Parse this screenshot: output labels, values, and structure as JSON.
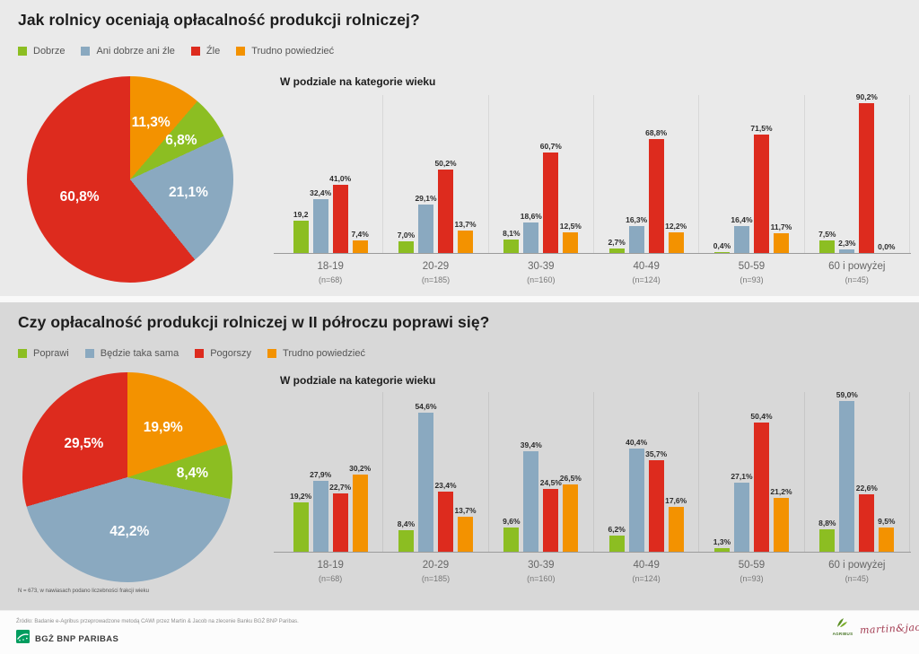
{
  "colors": {
    "green": "#8cbe22",
    "blue": "#8aa9c0",
    "red": "#dd2b1e",
    "orange": "#f39200"
  },
  "sections": [
    {
      "title": "Jak rolnicy oceniają opłacalność produkcji rolniczej?",
      "legend": [
        {
          "label": "Dobrze",
          "color": "green"
        },
        {
          "label": "Ani dobrze ani źle",
          "color": "blue"
        },
        {
          "label": "Źle",
          "color": "red"
        },
        {
          "label": "Trudno powiedzieć",
          "color": "orange"
        }
      ],
      "pie_chart": 0,
      "bar_chart": 1
    },
    {
      "title": "Czy opłacalność produkcji rolniczej w II półroczu poprawi się?",
      "legend": [
        {
          "label": "Poprawi",
          "color": "green"
        },
        {
          "label": "Będzie taka sama",
          "color": "blue"
        },
        {
          "label": "Pogorszy",
          "color": "red"
        },
        {
          "label": "Trudno powiedzieć",
          "color": "orange"
        }
      ],
      "pie_chart": 2,
      "bar_chart": 3
    }
  ],
  "chart_data": [
    {
      "type": "pie",
      "title": "Jak rolnicy oceniają opłacalność produkcji rolniczej?",
      "order": "clockwise from 12 o'clock",
      "slices": [
        {
          "name": "Trudno powiedzieć",
          "value": 11.3,
          "label": "11,3%",
          "color": "orange"
        },
        {
          "name": "Dobrze",
          "value": 6.8,
          "label": "6,8%",
          "color": "green"
        },
        {
          "name": "Ani dobrze ani źle",
          "value": 21.1,
          "label": "21,1%",
          "color": "blue"
        },
        {
          "name": "Źle",
          "value": 60.8,
          "label": "60,8%",
          "color": "red"
        }
      ]
    },
    {
      "type": "bar",
      "title": "W podziale na kategorie wieku",
      "categories": [
        "18-19",
        "20-29",
        "30-39",
        "40-49",
        "50-59",
        "60 i powyżej"
      ],
      "counts": [
        "(n=68)",
        "(n=185)",
        "(n=160)",
        "(n=124)",
        "(n=93)",
        "(n=45)"
      ],
      "ylim": [
        0,
        100
      ],
      "series": [
        {
          "name": "Dobrze",
          "color": "green",
          "values": [
            19.2,
            7.0,
            8.1,
            2.7,
            0.4,
            7.5
          ],
          "labels": [
            "19,2",
            "7,0%",
            "8,1%",
            "2,7%",
            "0,4%",
            "7,5%"
          ]
        },
        {
          "name": "Ani dobrze ani źle",
          "color": "blue",
          "values": [
            32.4,
            29.1,
            18.6,
            16.3,
            16.4,
            2.3
          ],
          "labels": [
            "32,4%",
            "29,1%",
            "18,6%",
            "16,3%",
            "16,4%",
            "2,3%"
          ]
        },
        {
          "name": "Źle",
          "color": "red",
          "values": [
            41.0,
            50.2,
            60.7,
            68.8,
            71.5,
            90.2
          ],
          "labels": [
            "41,0%",
            "50,2%",
            "60,7%",
            "68,8%",
            "71,5%",
            "90,2%"
          ]
        },
        {
          "name": "Trudno powiedzieć",
          "color": "orange",
          "values": [
            7.4,
            13.7,
            12.5,
            12.2,
            11.7,
            0.0
          ],
          "labels": [
            "7,4%",
            "13,7%",
            "12,5%",
            "12,2%",
            "11,7%",
            "0,0%"
          ]
        }
      ]
    },
    {
      "type": "pie",
      "title": "Czy opłacalność produkcji rolniczej w II półroczu poprawi się?",
      "order": "clockwise from 12 o'clock",
      "slices": [
        {
          "name": "Trudno powiedzieć",
          "value": 19.9,
          "label": "19,9%",
          "color": "orange"
        },
        {
          "name": "Poprawi",
          "value": 8.4,
          "label": "8,4%",
          "color": "green"
        },
        {
          "name": "Będzie taka sama",
          "value": 42.2,
          "label": "42,2%",
          "color": "blue"
        },
        {
          "name": "Pogorszy",
          "value": 29.5,
          "label": "29,5%",
          "color": "red"
        }
      ]
    },
    {
      "type": "bar",
      "title": "W podziale na kategorie wieku",
      "categories": [
        "18-19",
        "20-29",
        "30-39",
        "40-49",
        "50-59",
        "60 i powyżej"
      ],
      "counts": [
        "(n=68)",
        "(n=185)",
        "(n=160)",
        "(n=124)",
        "(n=93)",
        "(n=45)"
      ],
      "ylim": [
        0,
        100
      ],
      "series": [
        {
          "name": "Poprawi",
          "color": "green",
          "values": [
            19.2,
            8.4,
            9.6,
            6.2,
            1.3,
            8.8
          ],
          "labels": [
            "19,2%",
            "8,4%",
            "9,6%",
            "6,2%",
            "1,3%",
            "8,8%"
          ]
        },
        {
          "name": "Będzie taka sama",
          "color": "blue",
          "values": [
            27.9,
            54.6,
            39.4,
            40.4,
            27.1,
            59.0
          ],
          "labels": [
            "27,9%",
            "54,6%",
            "39,4%",
            "40,4%",
            "27,1%",
            "59,0%"
          ]
        },
        {
          "name": "Pogorszy",
          "color": "red",
          "values": [
            22.7,
            23.4,
            24.5,
            35.7,
            50.4,
            22.6
          ],
          "labels": [
            "22,7%",
            "23,4%",
            "24,5%",
            "35,7%",
            "50,4%",
            "22,6%"
          ]
        },
        {
          "name": "Trudno powiedzieć",
          "color": "orange",
          "values": [
            30.2,
            13.7,
            26.5,
            17.6,
            21.2,
            9.5
          ],
          "labels": [
            "30,2%",
            "13,7%",
            "26,5%",
            "17,6%",
            "21,2%",
            "9,5%"
          ]
        }
      ]
    }
  ],
  "footnote": "N = 673, w nawiasach podano liczebności frakcji wieku",
  "footer": {
    "source": "Źródło: Badanie e-Agribus przeprowadzone metodą CAWI przez Martin & Jacob na zlecenie Banku BGŻ BNP Paribas.",
    "bank": "BGŻ BNP PARIBAS",
    "agribus": "AGRIBUS",
    "martinjacob": "martin&jacob"
  }
}
